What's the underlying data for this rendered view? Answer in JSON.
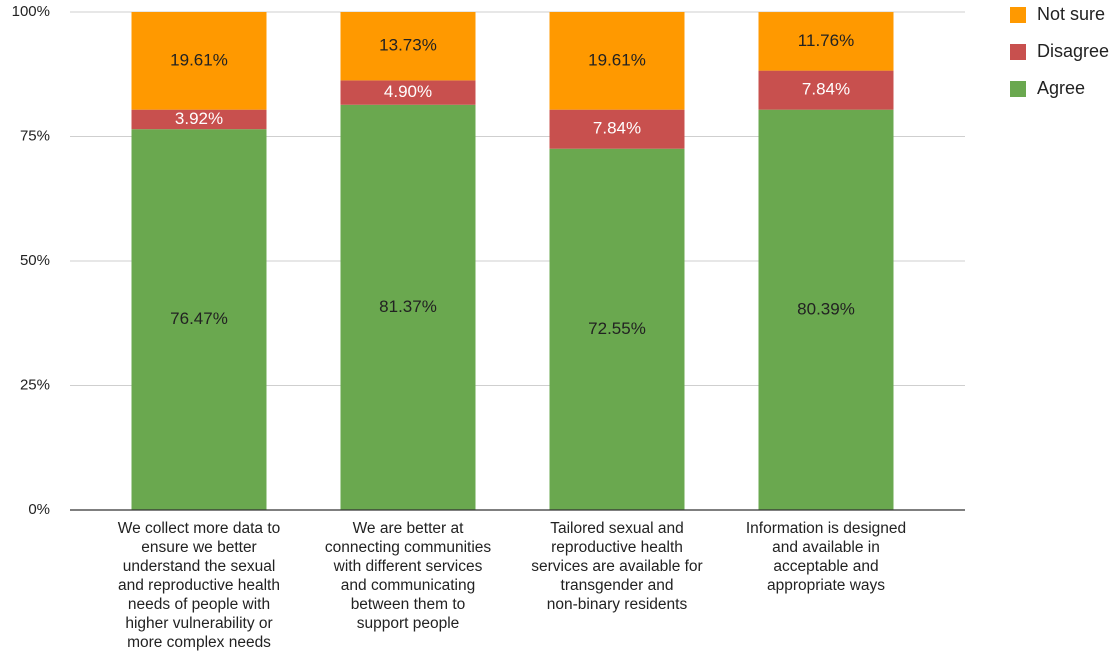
{
  "chart_data": {
    "type": "stacked_bar",
    "categories": [
      "We collect more data to\nensure we better\nunderstand the sexual\nand reproductive health\nneeds of people with\nhigher vulnerability or\nmore complex needs",
      "We are better at\nconnecting communities\nwith different services\nand communicating\nbetween them to\nsupport people",
      "Tailored sexual and\nreproductive health\nservices are available for\ntransgender and\nnon-binary residents",
      "Information is designed\nand available in\nacceptable and\nappropriate ways"
    ],
    "series": [
      {
        "name": "Agree",
        "color": "#6aa84f",
        "values": [
          76.47,
          81.37,
          72.55,
          80.39
        ],
        "value_labels": [
          "76.47%",
          "81.37%",
          "72.55%",
          "80.39%"
        ]
      },
      {
        "name": "Disagree",
        "color": "#c8504e",
        "values": [
          3.92,
          4.9,
          7.84,
          7.84
        ],
        "value_labels": [
          "3.92%",
          "4.90%",
          "7.84%",
          "7.84%"
        ]
      },
      {
        "name": "Not sure",
        "color": "#ff9900",
        "values": [
          19.61,
          13.73,
          19.61,
          11.76
        ],
        "value_labels": [
          "19.61%",
          "13.73%",
          "19.61%",
          "11.76%"
        ]
      }
    ],
    "ylim": [
      0,
      100
    ],
    "yticks": [
      {
        "value": 0,
        "label": "0%"
      },
      {
        "value": 25,
        "label": "25%"
      },
      {
        "value": 50,
        "label": "50%"
      },
      {
        "value": 75,
        "label": "75%"
      },
      {
        "value": 100,
        "label": "100%"
      }
    ],
    "grid": true,
    "legend": "top-right"
  }
}
